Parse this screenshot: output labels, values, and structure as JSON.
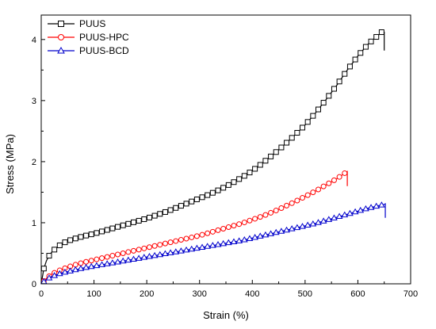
{
  "chart_data": {
    "type": "line",
    "xlabel": "Strain (%)",
    "ylabel": "Stress (MPa)",
    "xlim": [
      0,
      700
    ],
    "ylim": [
      0,
      4.4
    ],
    "xticks": [
      0,
      100,
      200,
      300,
      400,
      500,
      600,
      700
    ],
    "yticks": [
      0,
      1,
      2,
      3,
      4
    ],
    "grid": false,
    "legend_position": "top-left",
    "series": [
      {
        "name": "PUUS",
        "color": "#000000",
        "marker": "square",
        "x": [
          0,
          5,
          10,
          15,
          20,
          30,
          40,
          50,
          60,
          80,
          100,
          120,
          140,
          160,
          180,
          200,
          220,
          240,
          260,
          280,
          300,
          320,
          340,
          360,
          380,
          400,
          420,
          440,
          460,
          480,
          500,
          520,
          540,
          560,
          580,
          600,
          620,
          640,
          645,
          650,
          650
        ],
        "y": [
          0,
          0.25,
          0.38,
          0.46,
          0.52,
          0.6,
          0.66,
          0.7,
          0.73,
          0.78,
          0.82,
          0.87,
          0.92,
          0.97,
          1.02,
          1.07,
          1.13,
          1.19,
          1.26,
          1.33,
          1.4,
          1.47,
          1.55,
          1.64,
          1.74,
          1.85,
          1.98,
          2.12,
          2.27,
          2.43,
          2.6,
          2.8,
          3.02,
          3.25,
          3.5,
          3.73,
          3.93,
          4.08,
          4.12,
          4.12,
          3.82
        ]
      },
      {
        "name": "PUUS-HPC",
        "color": "#ff0000",
        "marker": "circle",
        "x": [
          0,
          10,
          20,
          40,
          60,
          80,
          100,
          120,
          140,
          160,
          180,
          200,
          220,
          240,
          260,
          280,
          300,
          320,
          340,
          360,
          380,
          400,
          420,
          440,
          460,
          480,
          500,
          520,
          540,
          560,
          570,
          578,
          580,
          580
        ],
        "y": [
          0,
          0.09,
          0.16,
          0.24,
          0.3,
          0.35,
          0.39,
          0.43,
          0.47,
          0.51,
          0.55,
          0.59,
          0.63,
          0.67,
          0.71,
          0.75,
          0.79,
          0.84,
          0.89,
          0.94,
          0.99,
          1.05,
          1.11,
          1.18,
          1.26,
          1.34,
          1.43,
          1.52,
          1.62,
          1.72,
          1.78,
          1.83,
          1.84,
          1.6
        ]
      },
      {
        "name": "PUUS-BCD",
        "color": "#0000cc",
        "marker": "triangle",
        "x": [
          0,
          10,
          20,
          40,
          60,
          80,
          100,
          120,
          140,
          160,
          180,
          200,
          220,
          240,
          260,
          280,
          300,
          320,
          340,
          360,
          380,
          400,
          420,
          440,
          460,
          480,
          500,
          520,
          540,
          560,
          580,
          600,
          620,
          640,
          650,
          652,
          652
        ],
        "y": [
          0,
          0.07,
          0.12,
          0.18,
          0.22,
          0.26,
          0.29,
          0.32,
          0.35,
          0.38,
          0.41,
          0.44,
          0.47,
          0.5,
          0.53,
          0.56,
          0.59,
          0.62,
          0.65,
          0.68,
          0.71,
          0.75,
          0.79,
          0.83,
          0.87,
          0.91,
          0.95,
          0.99,
          1.04,
          1.09,
          1.14,
          1.19,
          1.24,
          1.28,
          1.3,
          1.31,
          1.08
        ]
      }
    ]
  }
}
